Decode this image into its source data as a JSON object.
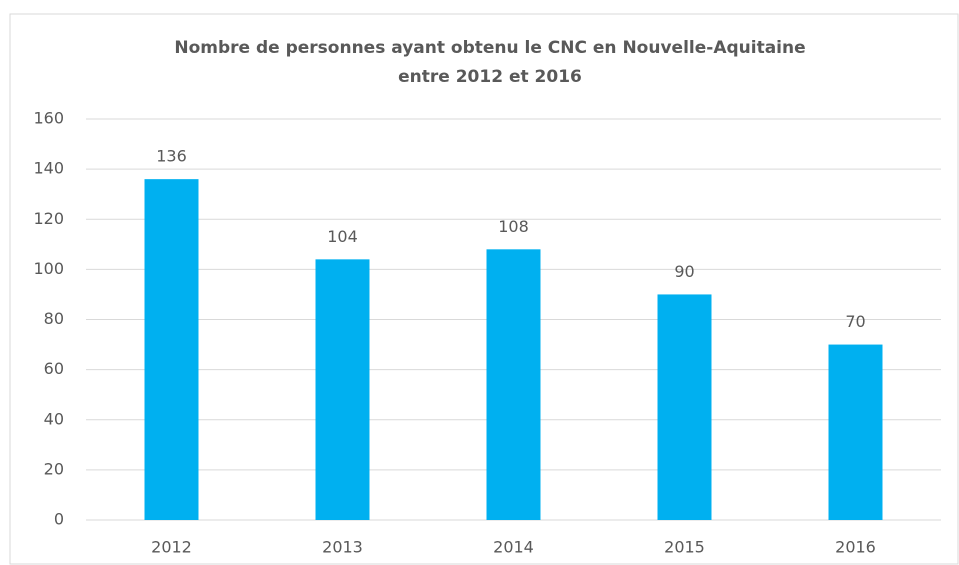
{
  "chart_data": {
    "type": "bar",
    "title": [
      "Nombre de personnes ayant obtenu le CNC en Nouvelle-Aquitaine",
      "entre 2012 et 2016"
    ],
    "categories": [
      "2012",
      "2013",
      "2014",
      "2015",
      "2016"
    ],
    "values": [
      136,
      104,
      108,
      90,
      70
    ],
    "color": "#00b0f0",
    "ylim": [
      0,
      160
    ],
    "yticks": [
      0,
      20,
      40,
      60,
      80,
      100,
      120,
      140,
      160
    ],
    "grid": true
  }
}
